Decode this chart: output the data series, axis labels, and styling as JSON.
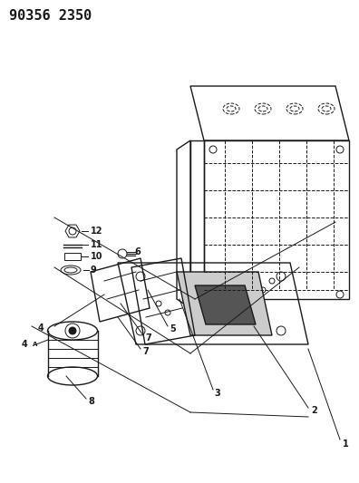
{
  "title": "90356 2350",
  "title_fontsize": 11,
  "title_fontweight": "bold",
  "bg_color": "#ffffff",
  "line_color": "#1a1a1a",
  "fig_width": 3.96,
  "fig_height": 5.33,
  "dpi": 100
}
